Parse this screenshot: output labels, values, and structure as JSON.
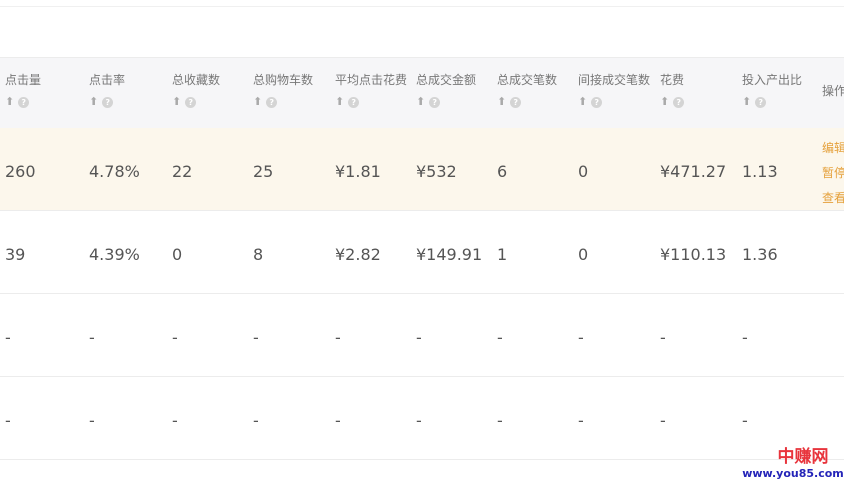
{
  "columns": [
    {
      "label": "点击量",
      "sortable": true
    },
    {
      "label": "点击率",
      "sortable": true
    },
    {
      "label": "总收藏数",
      "sortable": true
    },
    {
      "label": "总购物车数",
      "sortable": true
    },
    {
      "label": "平均点击花费",
      "sortable": true
    },
    {
      "label": "总成交金额",
      "sortable": true
    },
    {
      "label": "总成交笔数",
      "sortable": true
    },
    {
      "label": "间接成交笔数",
      "sortable": true
    },
    {
      "label": "花费",
      "sortable": true
    },
    {
      "label": "投入产出比",
      "sortable": true
    },
    {
      "label": "操作",
      "sortable": false
    }
  ],
  "rows": [
    {
      "highlighted": true,
      "cells": [
        "260",
        "4.78%",
        "22",
        "25",
        "¥1.81",
        "¥532",
        "6",
        "0",
        "¥471.27",
        "1.13"
      ],
      "actions": [
        "编辑",
        "暂停",
        "查看"
      ]
    },
    {
      "highlighted": false,
      "cells": [
        "39",
        "4.39%",
        "0",
        "8",
        "¥2.82",
        "¥149.91",
        "1",
        "0",
        "¥110.13",
        "1.36"
      ],
      "actions": []
    },
    {
      "highlighted": false,
      "cells": [
        "-",
        "-",
        "-",
        "-",
        "-",
        "-",
        "-",
        "-",
        "-",
        "-"
      ],
      "actions": []
    },
    {
      "highlighted": false,
      "cells": [
        "-",
        "-",
        "-",
        "-",
        "-",
        "-",
        "-",
        "-",
        "-",
        "-"
      ],
      "actions": []
    }
  ],
  "icons": {
    "sort": "arrow-up-icon",
    "help": "question-circle-icon"
  },
  "colors": {
    "header_bg": "#f6f6f8",
    "highlight_row_bg": "#fcf7ec",
    "action_link": "#e5a13c"
  },
  "watermark": {
    "name": "中赚网",
    "url": "www.you85.com"
  }
}
